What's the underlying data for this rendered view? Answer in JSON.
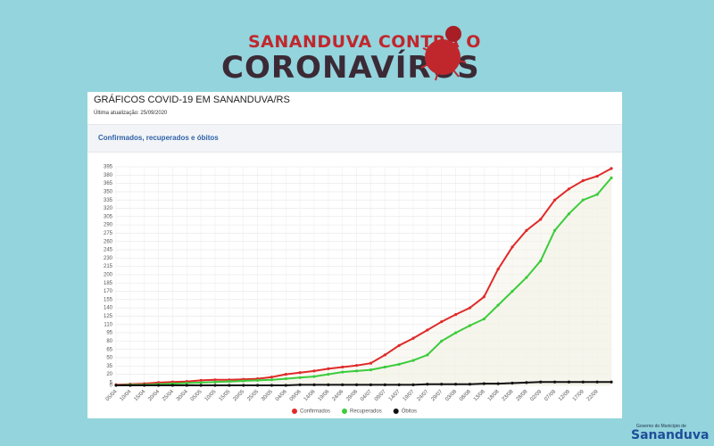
{
  "header": {
    "line1": "SANANDUVA CONTRA O",
    "line2": "CORONAVÍRUS"
  },
  "panel": {
    "title": "GRÁFICOS COVID-19 EM SANANDUVA/RS",
    "updated": "Última atualização: 25/09/2020",
    "card_title": "Confirmados, recuperados e óbitos"
  },
  "footer": {
    "line1": "Governo do Município de",
    "line2": "Sananduva"
  },
  "chart_data": {
    "type": "line",
    "categories": [
      "05/04",
      "10/04",
      "15/04",
      "20/04",
      "25/04",
      "30/04",
      "05/05",
      "10/05",
      "15/05",
      "20/05",
      "25/05",
      "30/05",
      "04/06",
      "09/06",
      "14/06",
      "19/06",
      "24/06",
      "29/06",
      "04/07",
      "09/07",
      "14/07",
      "19/07",
      "24/07",
      "29/07",
      "03/08",
      "08/08",
      "13/08",
      "18/08",
      "23/08",
      "28/08",
      "02/09",
      "07/09",
      "12/09",
      "17/09",
      "22/09",
      null
    ],
    "series": [
      {
        "name": "Confirmados",
        "color": "#e02a2a",
        "values": [
          1,
          2,
          3,
          5,
          6,
          7,
          9,
          10,
          10,
          11,
          12,
          15,
          20,
          23,
          26,
          30,
          33,
          36,
          40,
          55,
          72,
          85,
          100,
          115,
          128,
          140,
          160,
          210,
          250,
          280,
          300,
          335,
          355,
          370,
          378,
          392
        ]
      },
      {
        "name": "Recuperados",
        "color": "#3ccc3c",
        "values": [
          0,
          1,
          1,
          2,
          3,
          4,
          5,
          6,
          7,
          8,
          9,
          10,
          12,
          14,
          16,
          20,
          24,
          26,
          28,
          33,
          38,
          45,
          55,
          80,
          95,
          108,
          120,
          145,
          170,
          195,
          225,
          280,
          310,
          335,
          345,
          375
        ]
      },
      {
        "name": "Óbitos",
        "color": "#111111",
        "values": [
          0,
          0,
          0,
          0,
          0,
          0,
          0,
          0,
          0,
          0,
          0,
          0,
          0,
          1,
          1,
          1,
          1,
          1,
          1,
          1,
          1,
          1,
          2,
          2,
          2,
          2,
          3,
          3,
          4,
          5,
          6,
          6,
          6,
          6,
          6,
          6
        ]
      }
    ],
    "ylim": [
      0,
      395
    ],
    "yticks": [
      0,
      5,
      20,
      35,
      50,
      65,
      80,
      95,
      110,
      125,
      140,
      155,
      170,
      185,
      200,
      215,
      230,
      245,
      260,
      275,
      290,
      305,
      320,
      335,
      350,
      365,
      380,
      395
    ],
    "grid": true,
    "legend": "bottom"
  }
}
